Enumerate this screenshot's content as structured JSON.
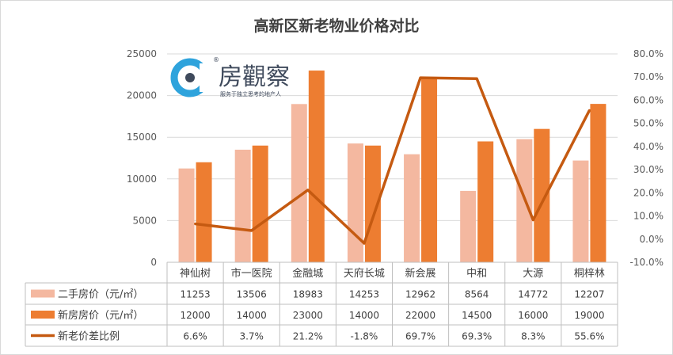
{
  "chart_data": {
    "type": "bar",
    "title": "高新区新老物业价格对比",
    "categories": [
      "神仙树",
      "市一医院",
      "金融城",
      "天府长城",
      "新会展",
      "中和",
      "大源",
      "桐梓林"
    ],
    "series": [
      {
        "name": "二手房价（元/㎡）",
        "type": "bar",
        "axis": "left",
        "color": "#f4b8a0",
        "values": [
          11253,
          13506,
          18983,
          14253,
          12962,
          8564,
          14772,
          12207
        ],
        "labels": [
          "11253",
          "13506",
          "18983",
          "14253",
          "12962",
          "8564",
          "14772",
          "12207"
        ]
      },
      {
        "name": "新房房价（元/㎡）",
        "type": "bar",
        "axis": "left",
        "color": "#ed7d31",
        "values": [
          12000,
          14000,
          23000,
          14000,
          22000,
          14500,
          16000,
          19000
        ],
        "labels": [
          "12000",
          "14000",
          "23000",
          "14000",
          "22000",
          "14500",
          "16000",
          "19000"
        ]
      },
      {
        "name": "新老价差比例",
        "type": "line",
        "axis": "right",
        "color": "#c55a11",
        "values": [
          6.6,
          3.7,
          21.2,
          -1.8,
          69.7,
          69.3,
          8.3,
          55.6
        ],
        "labels": [
          "6.6%",
          "3.7%",
          "21.2%",
          "-1.8%",
          "69.7%",
          "69.3%",
          "8.3%",
          "55.6%"
        ]
      }
    ],
    "y_left": {
      "min": 0,
      "max": 25000,
      "ticks": [
        "0",
        "5000",
        "10000",
        "15000",
        "20000",
        "25000"
      ]
    },
    "y_right": {
      "min": -10,
      "max": 80,
      "ticks": [
        "-10.0%",
        "0.0%",
        "10.0%",
        "20.0%",
        "30.0%",
        "40.0%",
        "50.0%",
        "60.0%",
        "70.0%",
        "80.0%"
      ]
    },
    "grid": true,
    "legend": "data-table"
  },
  "watermark": {
    "brand": "房觀察",
    "slogan": "服务于独立思考的地产人",
    "registered": "®",
    "accent_color": "#2ea3dc"
  }
}
